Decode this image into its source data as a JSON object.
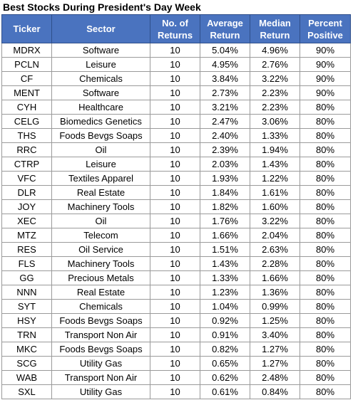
{
  "title": "Best Stocks During President's Day Week",
  "headers": {
    "ticker": "Ticker",
    "sector": "Sector",
    "returns_line1": "No. of",
    "returns_line2": "Returns",
    "avg_line1": "Average",
    "avg_line2": "Return",
    "med_line1": "Median",
    "med_line2": "Return",
    "pct_line1": "Percent",
    "pct_line2": "Positive"
  },
  "rows": [
    {
      "ticker": "MDRX",
      "sector": "Software",
      "returns": "10",
      "avg": "5.04%",
      "median": "4.96%",
      "pct": "90%"
    },
    {
      "ticker": "PCLN",
      "sector": "Leisure",
      "returns": "10",
      "avg": "4.95%",
      "median": "2.76%",
      "pct": "90%"
    },
    {
      "ticker": "CF",
      "sector": "Chemicals",
      "returns": "10",
      "avg": "3.84%",
      "median": "3.22%",
      "pct": "90%"
    },
    {
      "ticker": "MENT",
      "sector": "Software",
      "returns": "10",
      "avg": "2.73%",
      "median": "2.23%",
      "pct": "90%"
    },
    {
      "ticker": "CYH",
      "sector": "Healthcare",
      "returns": "10",
      "avg": "3.21%",
      "median": "2.23%",
      "pct": "80%"
    },
    {
      "ticker": "CELG",
      "sector": "Biomedics Genetics",
      "returns": "10",
      "avg": "2.47%",
      "median": "3.06%",
      "pct": "80%"
    },
    {
      "ticker": "THS",
      "sector": "Foods Bevgs Soaps",
      "returns": "10",
      "avg": "2.40%",
      "median": "1.33%",
      "pct": "80%"
    },
    {
      "ticker": "RRC",
      "sector": "Oil",
      "returns": "10",
      "avg": "2.39%",
      "median": "1.94%",
      "pct": "80%"
    },
    {
      "ticker": "CTRP",
      "sector": "Leisure",
      "returns": "10",
      "avg": "2.03%",
      "median": "1.43%",
      "pct": "80%"
    },
    {
      "ticker": "VFC",
      "sector": "Textiles Apparel",
      "returns": "10",
      "avg": "1.93%",
      "median": "1.22%",
      "pct": "80%"
    },
    {
      "ticker": "DLR",
      "sector": "Real Estate",
      "returns": "10",
      "avg": "1.84%",
      "median": "1.61%",
      "pct": "80%"
    },
    {
      "ticker": "JOY",
      "sector": "Machinery Tools",
      "returns": "10",
      "avg": "1.82%",
      "median": "1.60%",
      "pct": "80%"
    },
    {
      "ticker": "XEC",
      "sector": "Oil",
      "returns": "10",
      "avg": "1.76%",
      "median": "3.22%",
      "pct": "80%"
    },
    {
      "ticker": "MTZ",
      "sector": "Telecom",
      "returns": "10",
      "avg": "1.66%",
      "median": "2.04%",
      "pct": "80%"
    },
    {
      "ticker": "RES",
      "sector": "Oil Service",
      "returns": "10",
      "avg": "1.51%",
      "median": "2.63%",
      "pct": "80%"
    },
    {
      "ticker": "FLS",
      "sector": "Machinery Tools",
      "returns": "10",
      "avg": "1.43%",
      "median": "2.28%",
      "pct": "80%"
    },
    {
      "ticker": "GG",
      "sector": "Precious Metals",
      "returns": "10",
      "avg": "1.33%",
      "median": "1.66%",
      "pct": "80%"
    },
    {
      "ticker": "NNN",
      "sector": "Real Estate",
      "returns": "10",
      "avg": "1.23%",
      "median": "1.36%",
      "pct": "80%"
    },
    {
      "ticker": "SYT",
      "sector": "Chemicals",
      "returns": "10",
      "avg": "1.04%",
      "median": "0.99%",
      "pct": "80%"
    },
    {
      "ticker": "HSY",
      "sector": "Foods Bevgs Soaps",
      "returns": "10",
      "avg": "0.92%",
      "median": "1.25%",
      "pct": "80%"
    },
    {
      "ticker": "TRN",
      "sector": "Transport Non Air",
      "returns": "10",
      "avg": "0.91%",
      "median": "3.40%",
      "pct": "80%"
    },
    {
      "ticker": "MKC",
      "sector": "Foods Bevgs Soaps",
      "returns": "10",
      "avg": "0.82%",
      "median": "1.27%",
      "pct": "80%"
    },
    {
      "ticker": "SCG",
      "sector": "Utility Gas",
      "returns": "10",
      "avg": "0.65%",
      "median": "1.27%",
      "pct": "80%"
    },
    {
      "ticker": "WAB",
      "sector": "Transport Non Air",
      "returns": "10",
      "avg": "0.62%",
      "median": "2.48%",
      "pct": "80%"
    },
    {
      "ticker": "SXL",
      "sector": "Utility Gas",
      "returns": "10",
      "avg": "0.61%",
      "median": "0.84%",
      "pct": "80%"
    }
  ],
  "colors": {
    "header_bg": "#4a73bf",
    "header_text": "#ffffff",
    "grid": "#9a9a9a"
  }
}
